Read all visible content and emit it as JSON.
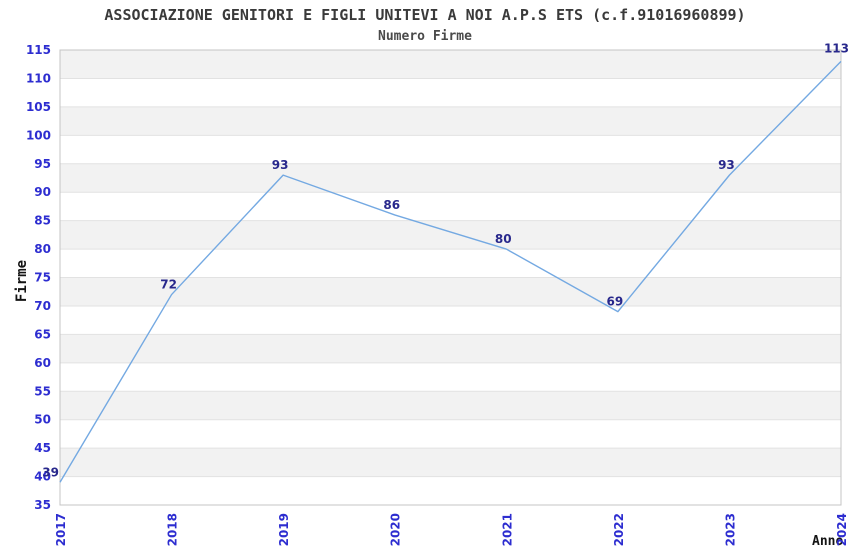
{
  "chart_data": {
    "type": "line",
    "title": "ASSOCIAZIONE GENITORI E FIGLI UNITEVI A NOI A.P.S ETS (c.f.91016960899)",
    "subtitle": "Numero Firme",
    "xlabel": "Anno",
    "ylabel": "Firme",
    "categories": [
      "2017",
      "2018",
      "2019",
      "2020",
      "2021",
      "2022",
      "2023",
      "2024"
    ],
    "values": [
      39,
      72,
      93,
      86,
      80,
      69,
      93,
      113
    ],
    "ylim": [
      35,
      115
    ],
    "ytick_step": 5,
    "grid": "horizontal",
    "alternating_bands": true,
    "legend_position": "none",
    "data_labels_visible": true,
    "colors": {
      "line": "#74a9e2",
      "tick_label": "#2d2dd0",
      "data_label": "#28288c",
      "band": "#f2f2f2",
      "gridline": "#e2e2e2",
      "plot_border": "#c4c4c4",
      "title": "#3a3a3a",
      "axis_label": "#141414"
    }
  }
}
